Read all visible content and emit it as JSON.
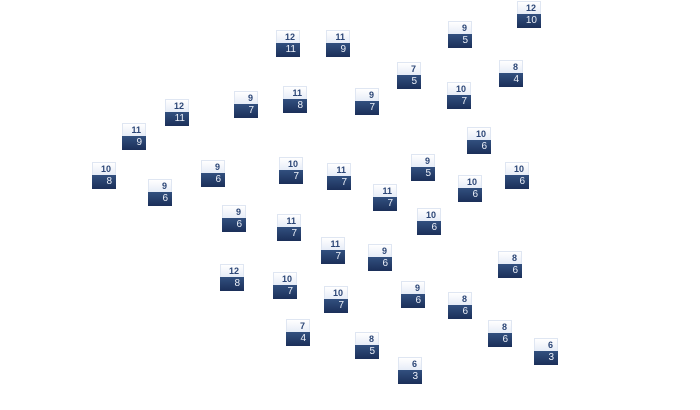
{
  "colors": {
    "top_text": "#2c4676",
    "bottom_fill": "#1b2f59",
    "bottom_text": "#eef2fa"
  },
  "nodes": [
    {
      "top": "12",
      "bottom": "11"
    },
    {
      "top": "11",
      "bottom": "9"
    },
    {
      "top": "9",
      "bottom": "5"
    },
    {
      "top": "12",
      "bottom": "10"
    },
    {
      "top": "7",
      "bottom": "5"
    },
    {
      "top": "8",
      "bottom": "4"
    },
    {
      "top": "10",
      "bottom": "7"
    },
    {
      "top": "9",
      "bottom": "7"
    },
    {
      "top": "11",
      "bottom": "8"
    },
    {
      "top": "9",
      "bottom": "7"
    },
    {
      "top": "12",
      "bottom": "11"
    },
    {
      "top": "11",
      "bottom": "9"
    },
    {
      "top": "10",
      "bottom": "6"
    },
    {
      "top": "10",
      "bottom": "8"
    },
    {
      "top": "9",
      "bottom": "6"
    },
    {
      "top": "10",
      "bottom": "7"
    },
    {
      "top": "11",
      "bottom": "7"
    },
    {
      "top": "9",
      "bottom": "5"
    },
    {
      "top": "10",
      "bottom": "6"
    },
    {
      "top": "10",
      "bottom": "6"
    },
    {
      "top": "9",
      "bottom": "6"
    },
    {
      "top": "11",
      "bottom": "7"
    },
    {
      "top": "9",
      "bottom": "6"
    },
    {
      "top": "10",
      "bottom": "6"
    },
    {
      "top": "11",
      "bottom": "7"
    },
    {
      "top": "11",
      "bottom": "7"
    },
    {
      "top": "9",
      "bottom": "6"
    },
    {
      "top": "8",
      "bottom": "6"
    },
    {
      "top": "12",
      "bottom": "8"
    },
    {
      "top": "10",
      "bottom": "7"
    },
    {
      "top": "10",
      "bottom": "7"
    },
    {
      "top": "9",
      "bottom": "6"
    },
    {
      "top": "8",
      "bottom": "6"
    },
    {
      "top": "7",
      "bottom": "4"
    },
    {
      "top": "8",
      "bottom": "6"
    },
    {
      "top": "8",
      "bottom": "5"
    },
    {
      "top": "6",
      "bottom": "3"
    },
    {
      "top": "6",
      "bottom": "3"
    }
  ]
}
